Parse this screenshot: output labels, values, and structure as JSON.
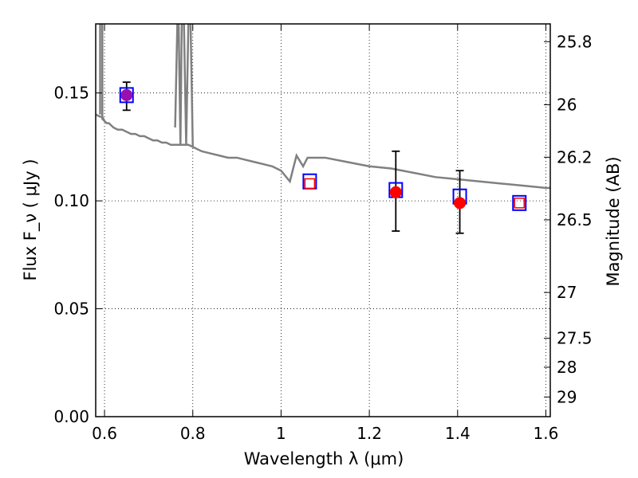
{
  "chart_data": {
    "type": "scatter",
    "xlabel": "Wavelength  λ (μm)",
    "ylabel": "Flux  F_ν  ( μJy )",
    "y2label": "Magnitude (AB)",
    "xlim": [
      0.58,
      1.61
    ],
    "ylim": [
      0.0,
      0.182
    ],
    "grid": true,
    "x_ticks": [
      0.6,
      0.8,
      1.0,
      1.2,
      1.4,
      1.6
    ],
    "x_tick_labels": [
      "0.6",
      "0.8",
      "1",
      "1.2",
      "1.4",
      "1.6"
    ],
    "y_ticks": [
      0.0,
      0.05,
      0.1,
      0.15
    ],
    "y_tick_labels": [
      "0.00",
      "0.05",
      "0.10",
      "0.15"
    ],
    "y2_ticks": [
      {
        "label": "25.8",
        "value": 25.8
      },
      {
        "label": "26",
        "value": 26.0
      },
      {
        "label": "26.2",
        "value": 26.2
      },
      {
        "label": "26.5",
        "value": 26.5
      },
      {
        "label": "27",
        "value": 27.0
      },
      {
        "label": "27.5",
        "value": 27.5
      },
      {
        "label": "28",
        "value": 28.0
      },
      {
        "label": "29",
        "value": 29.0
      }
    ],
    "model_spectrum": {
      "color": "#808080",
      "x": [
        0.58,
        0.59,
        0.595,
        0.6,
        0.605,
        0.61,
        0.62,
        0.63,
        0.64,
        0.65,
        0.66,
        0.67,
        0.68,
        0.69,
        0.7,
        0.71,
        0.72,
        0.73,
        0.74,
        0.75,
        0.76,
        0.77,
        0.78,
        0.79,
        0.8,
        0.82,
        0.84,
        0.86,
        0.88,
        0.9,
        0.92,
        0.94,
        0.96,
        0.98,
        1.0,
        1.02,
        1.035,
        1.05,
        1.06,
        1.08,
        1.1,
        1.15,
        1.2,
        1.25,
        1.3,
        1.35,
        1.4,
        1.45,
        1.5,
        1.55,
        1.6,
        1.61
      ],
      "y": [
        0.14,
        0.139,
        0.139,
        0.137,
        0.136,
        0.136,
        0.134,
        0.133,
        0.133,
        0.132,
        0.131,
        0.131,
        0.13,
        0.13,
        0.129,
        0.128,
        0.128,
        0.127,
        0.127,
        0.126,
        0.126,
        0.126,
        0.126,
        0.126,
        0.125,
        0.123,
        0.122,
        0.121,
        0.12,
        0.12,
        0.119,
        0.118,
        0.117,
        0.116,
        0.114,
        0.109,
        0.121,
        0.116,
        0.12,
        0.12,
        0.12,
        0.118,
        0.116,
        0.115,
        0.113,
        0.111,
        0.11,
        0.109,
        0.108,
        0.107,
        0.106,
        0.106
      ],
      "spike_segments": [
        {
          "x": [
            0.59,
            0.59,
            0.595,
            0.595,
            0.6
          ],
          "y": [
            0.14,
            0.182,
            0.182,
            0.138,
            0.137
          ]
        },
        {
          "x": [
            0.76,
            0.765,
            0.768,
            0.772,
            0.775,
            0.78,
            0.785,
            0.79,
            0.795,
            0.8
          ],
          "y": [
            0.134,
            0.182,
            0.182,
            0.126,
            0.182,
            0.182,
            0.126,
            0.182,
            0.182,
            0.125
          ]
        }
      ]
    },
    "series": [
      {
        "marker": "open-square",
        "color": "#0000ff",
        "x": [
          0.65,
          1.065,
          1.26,
          1.405,
          1.54
        ],
        "y": [
          0.149,
          0.109,
          0.105,
          0.102,
          0.099
        ]
      },
      {
        "marker": "small-open-square",
        "color": "#ff0000",
        "x": [
          1.065,
          1.54
        ],
        "y": [
          0.108,
          0.099
        ]
      },
      {
        "marker": "filled-circle",
        "color": "#ff0000",
        "x": [
          0.65,
          1.26,
          1.405
        ],
        "y": [
          0.149,
          0.104,
          0.099
        ],
        "yerr_low": [
          0.007,
          0.018,
          0.014
        ],
        "yerr_high": [
          0.006,
          0.019,
          0.015
        ]
      }
    ],
    "overlap_color": "#9a0fb0"
  }
}
